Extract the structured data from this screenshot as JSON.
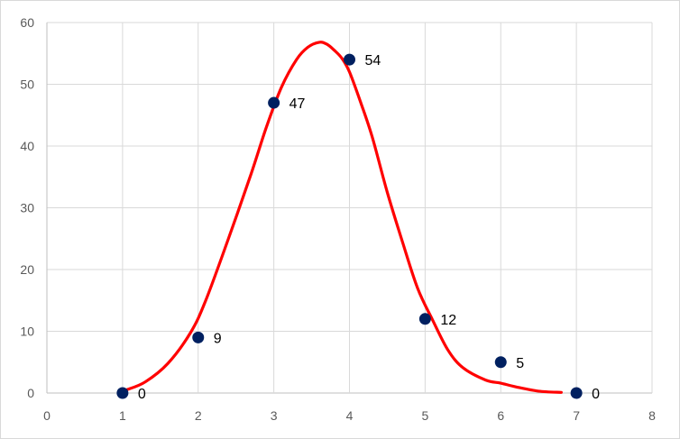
{
  "chart_data": {
    "type": "scatter",
    "title": "",
    "xlabel": "",
    "ylabel": "",
    "xlim": [
      0,
      8
    ],
    "ylim": [
      0,
      60
    ],
    "xticks": [
      "0",
      "1",
      "2",
      "3",
      "4",
      "5",
      "6",
      "7",
      "8"
    ],
    "yticks": [
      "0",
      "10",
      "20",
      "30",
      "40",
      "50",
      "60"
    ],
    "grid": true,
    "legend": "none",
    "series": [
      {
        "kind": "points",
        "x": [
          1,
          2,
          3,
          4,
          5,
          6,
          7
        ],
        "y": [
          0,
          9,
          47,
          54,
          12,
          5,
          0
        ],
        "labels": [
          "0",
          "9",
          "47",
          "54",
          "12",
          "5",
          "0"
        ],
        "color": "#002060"
      },
      {
        "kind": "curve",
        "x": [
          1.05,
          1.3,
          1.6,
          1.9,
          2.1,
          2.4,
          2.7,
          2.9,
          3.1,
          3.3,
          3.45,
          3.6,
          3.7,
          3.8,
          3.9,
          4.0,
          4.15,
          4.3,
          4.5,
          4.7,
          4.9,
          5.1,
          5.3,
          5.5,
          5.8,
          6.0,
          6.2,
          6.5,
          6.8
        ],
        "y": [
          0.5,
          1.8,
          4.8,
          9.8,
          15,
          25,
          35.5,
          43,
          49.5,
          54,
          56,
          56.8,
          56.5,
          55.5,
          54.2,
          52,
          47,
          41.5,
          32.5,
          24.5,
          17,
          11.8,
          7,
          4.1,
          2.1,
          1.6,
          1.0,
          0.3,
          0.1
        ],
        "color": "#ff0000"
      }
    ]
  }
}
